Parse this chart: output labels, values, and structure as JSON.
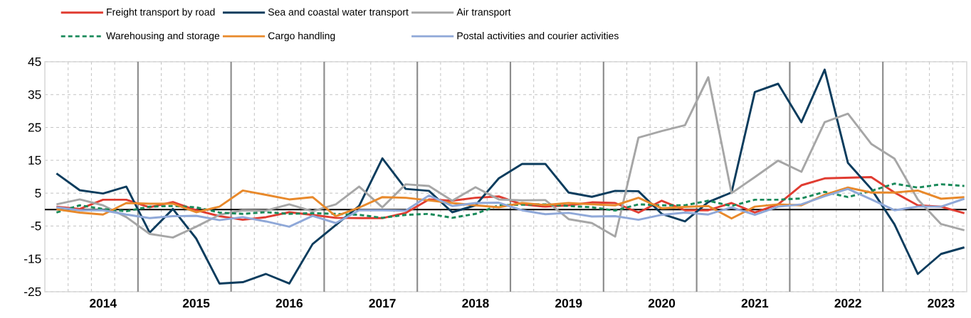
{
  "chart_data": {
    "type": "line",
    "categories": [
      null,
      null,
      "2014",
      null,
      null,
      null,
      "2015",
      null,
      null,
      null,
      "2016",
      null,
      null,
      null,
      "2017",
      null,
      null,
      null,
      "2018",
      null,
      null,
      null,
      "2019",
      null,
      null,
      null,
      "2020",
      null,
      null,
      null,
      "2021",
      null,
      null,
      null,
      "2022",
      null,
      null,
      null,
      "2023",
      null
    ],
    "series": [
      {
        "name": "Freight transport by road",
        "color": "#e03c31",
        "values": [
          0.9,
          0.2,
          3.0,
          3.0,
          0.7,
          2.3,
          -0.2,
          -2.0,
          -3.1,
          -2.3,
          -0.8,
          -1.6,
          -2.5,
          -2.6,
          -2.6,
          -1.0,
          3.1,
          2.7,
          3.6,
          4.0,
          1.6,
          0.9,
          1.3,
          2.2,
          2.0,
          -0.9,
          2.7,
          -0.2,
          -0.2,
          2.0,
          -0.9,
          1.6,
          7.4,
          9.5,
          9.7,
          9.9,
          5.2,
          1.3,
          0.9,
          -1.1
        ]
      },
      {
        "name": "Sea and coastal water transport",
        "color": "#0b3c5d",
        "values": [
          11.0,
          5.9,
          4.9,
          7.0,
          -7.0,
          0.2,
          -8.8,
          -22.5,
          -22.1,
          -19.6,
          -22.5,
          -10.5,
          -4.7,
          1.1,
          15.6,
          6.3,
          5.7,
          -0.8,
          1.3,
          9.5,
          13.9,
          13.9,
          5.2,
          3.9,
          5.7,
          5.6,
          -1.3,
          -3.6,
          2.3,
          5.2,
          35.8,
          38.3,
          26.6,
          42.6,
          14.2,
          6.3,
          -4.5,
          -19.6,
          -13.5,
          -11.5
        ]
      },
      {
        "name": "Air transport",
        "color": "#a6a6a6",
        "values": [
          1.6,
          3.1,
          1.3,
          -2.3,
          -7.4,
          -8.5,
          -5.2,
          -1.6,
          -0.2,
          -0.3,
          1.6,
          -0.5,
          1.6,
          7.0,
          0.7,
          7.7,
          7.2,
          2.7,
          6.8,
          3.1,
          2.8,
          2.9,
          -2.9,
          -4.1,
          -8.2,
          21.9,
          23.9,
          25.7,
          40.3,
          5.0,
          9.9,
          14.9,
          11.5,
          26.6,
          29.2,
          20.0,
          15.5,
          3.1,
          -4.4,
          -6.3
        ]
      },
      {
        "name": "Warehousing and storage",
        "color": "#1a8a5a",
        "line_style": "dashed",
        "values": [
          -0.9,
          1.3,
          0.2,
          -0.5,
          0.9,
          1.1,
          0.7,
          -0.9,
          -1.3,
          -0.8,
          -1.3,
          -1.1,
          -1.3,
          -1.6,
          -2.5,
          -1.6,
          -1.3,
          -2.5,
          -1.3,
          1.3,
          1.5,
          1.6,
          1.1,
          0.7,
          -0.3,
          1.6,
          1.3,
          1.3,
          2.7,
          1.1,
          3.0,
          3.0,
          3.4,
          5.4,
          3.8,
          5.7,
          7.9,
          6.7,
          7.7,
          7.2
        ]
      },
      {
        "name": "Cargo handling",
        "color": "#e8892b",
        "values": [
          0.1,
          -0.9,
          -1.5,
          2.0,
          1.8,
          1.8,
          -0.8,
          0.9,
          5.8,
          4.5,
          3.1,
          3.8,
          -2.0,
          0.6,
          3.8,
          3.6,
          2.8,
          2.0,
          1.3,
          0.7,
          2.0,
          1.4,
          2.0,
          1.6,
          1.3,
          3.6,
          0.4,
          0.8,
          1.1,
          -2.7,
          0.9,
          1.6,
          1.3,
          4.5,
          6.7,
          5.2,
          5.2,
          5.8,
          3.3,
          3.8
        ]
      },
      {
        "name": "Postal activities and courier activities",
        "color": "#8fa8d8",
        "values": [
          0.7,
          -0.2,
          -0.2,
          -1.5,
          -2.6,
          -2.0,
          -1.9,
          -3.2,
          -2.3,
          -3.6,
          -5.2,
          -1.9,
          -4.1,
          -0.2,
          -0.2,
          -0.3,
          4.3,
          1.1,
          2.0,
          2.1,
          -0.2,
          -1.4,
          -1.0,
          -2.1,
          -2.0,
          -3.1,
          -1.6,
          -0.9,
          -1.5,
          0.7,
          -1.6,
          0.9,
          1.6,
          4.1,
          6.3,
          3.1,
          -0.2,
          0.9,
          0.9,
          3.3
        ]
      }
    ],
    "ylim": [
      -25,
      45
    ],
    "yticks": [
      -25,
      -15,
      -5,
      5,
      15,
      25,
      35,
      45
    ],
    "grid": true,
    "legend": "top",
    "line_style": "solid",
    "ref_lines": [
      {
        "axis": "y",
        "value": 0,
        "color": "#000000"
      }
    ]
  }
}
